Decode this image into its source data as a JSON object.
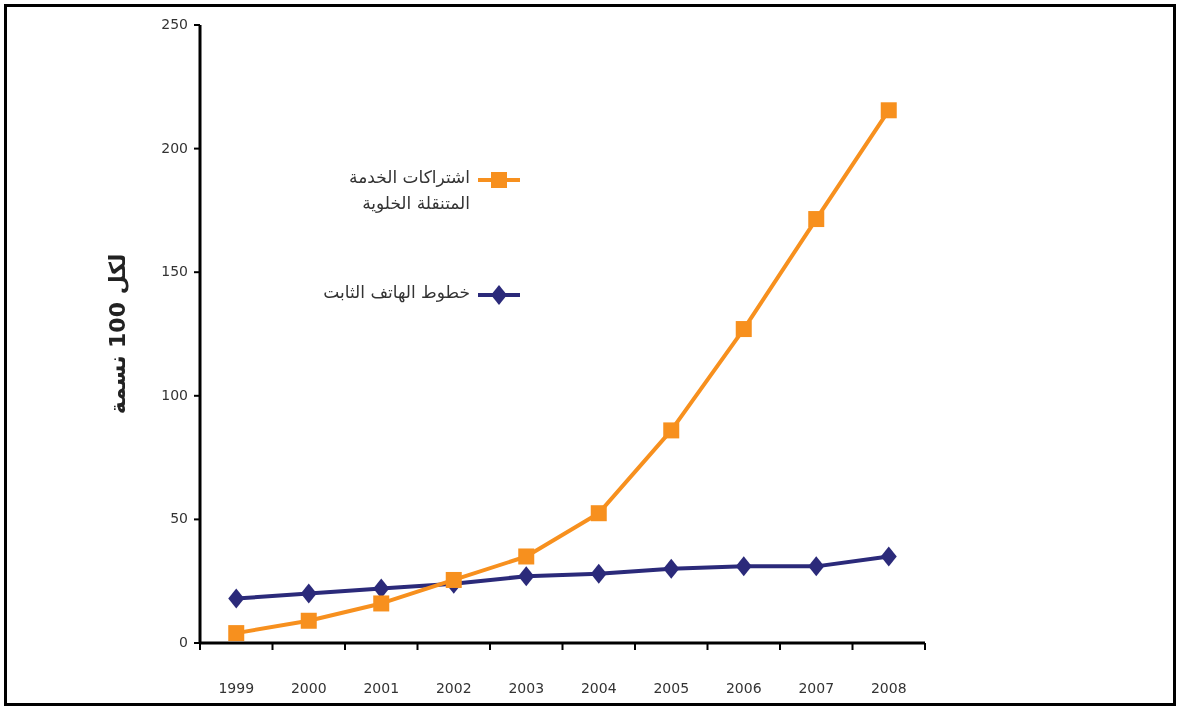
{
  "chart_data": {
    "type": "line",
    "ylabel": "لكل 100 نسمة",
    "categories": [
      "1999",
      "2000",
      "2001",
      "2002",
      "2003",
      "2004",
      "2005",
      "2006",
      "2007",
      "2008"
    ],
    "series": [
      {
        "name": "اشتراكات الخدمة المتنقلة الخلوية",
        "color": "#f7901e",
        "marker": "square",
        "values": [
          4,
          9,
          16,
          25.5,
          35,
          52.5,
          86,
          127,
          171.5,
          215.5
        ]
      },
      {
        "name": "خطوط الهاتف الثابت",
        "color": "#2b2a7a",
        "marker": "diamond",
        "values": [
          18,
          20,
          22,
          24,
          27,
          28,
          30,
          31,
          31,
          35
        ]
      }
    ],
    "ylim": [
      0,
      250
    ],
    "yticks": [
      0,
      50,
      100,
      150,
      200,
      250
    ],
    "legend": "top left",
    "grid": false,
    "line_style": "solid"
  }
}
